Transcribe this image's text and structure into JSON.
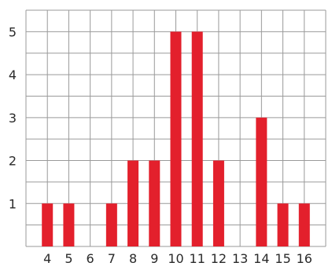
{
  "chart_data": {
    "type": "bar",
    "title": "",
    "xlabel": "",
    "ylabel": "",
    "categories": [
      "4",
      "5",
      "6",
      "7",
      "8",
      "9",
      "10",
      "11",
      "12",
      "13",
      "14",
      "15",
      "16"
    ],
    "values": [
      1,
      1,
      0,
      1,
      2,
      2,
      5,
      5,
      2,
      0,
      3,
      1,
      1
    ],
    "y_ticks": [
      "1",
      "2",
      "3",
      "4",
      "5"
    ],
    "ylim": [
      0,
      5.5
    ],
    "grid": true,
    "bar_color": "#e3202c",
    "grid_color": "#9a9a9a"
  }
}
